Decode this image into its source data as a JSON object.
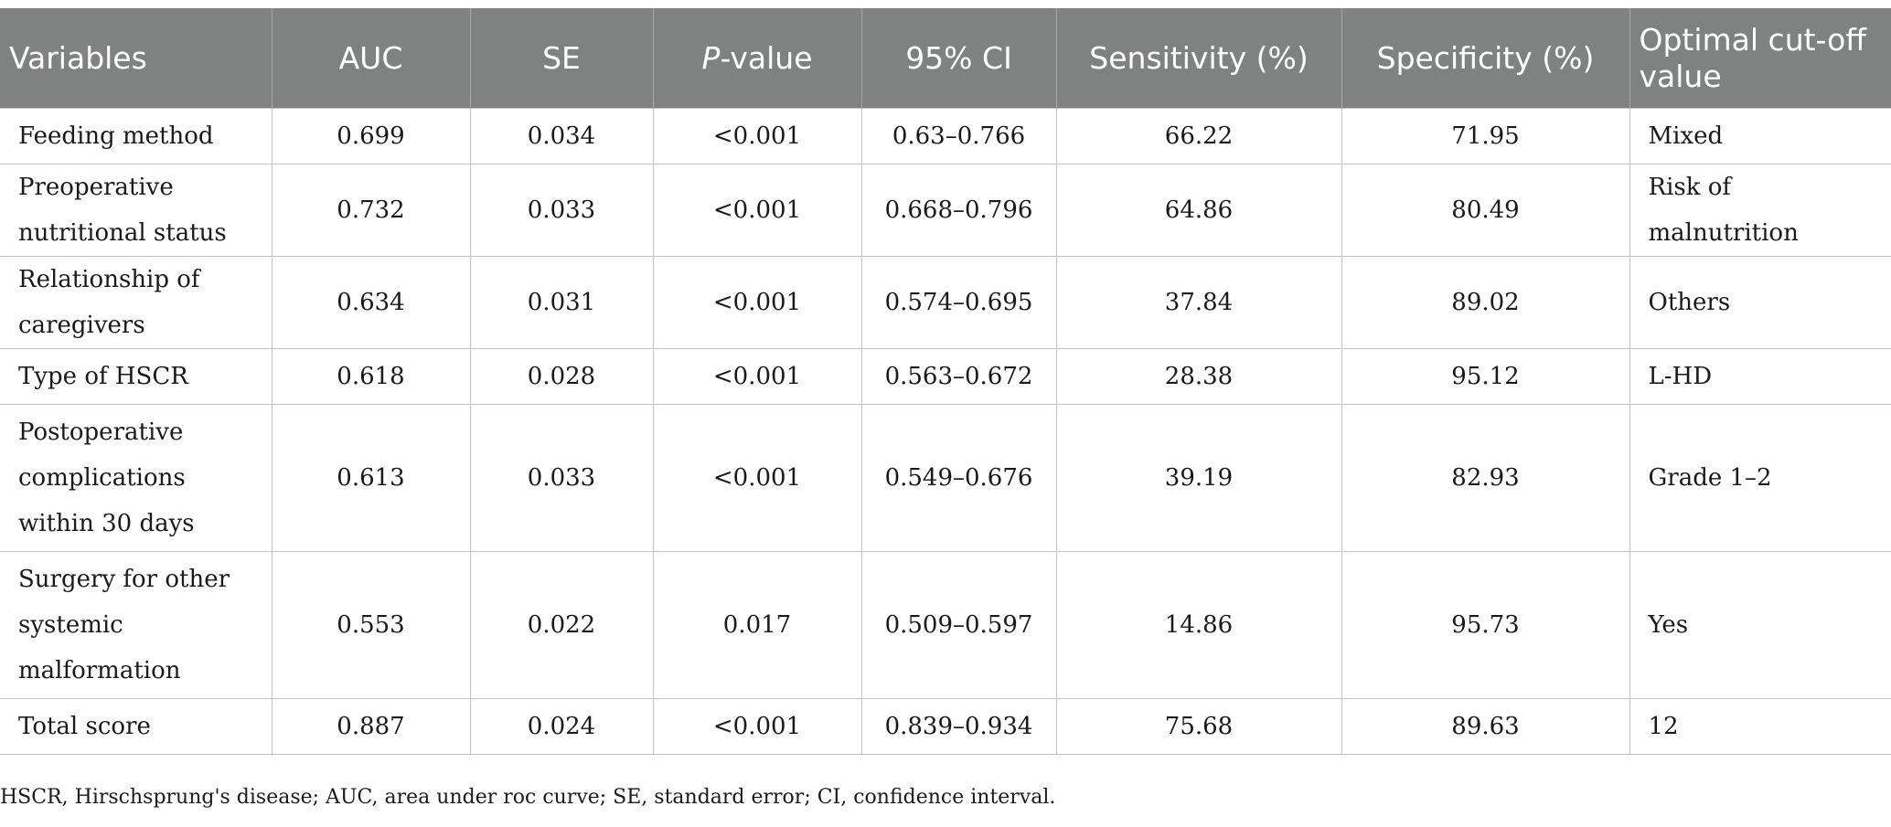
{
  "table": {
    "headers": {
      "variables": "Variables",
      "auc": "AUC",
      "se": "SE",
      "p_italic": "P",
      "p_suffix": "-value",
      "ci": "95% CI",
      "sensitivity": "Sensitivity (%)",
      "specificity": "Specificity (%)",
      "cutoff": "Optimal cut-off value"
    },
    "rows": [
      {
        "variable": "Feeding method",
        "auc": "0.699",
        "se": "0.034",
        "p": "<0.001",
        "ci": "0.63–0.766",
        "sensitivity": "66.22",
        "specificity": "71.95",
        "cutoff": "Mixed"
      },
      {
        "variable": "Preoperative nutritional status",
        "auc": "0.732",
        "se": "0.033",
        "p": "<0.001",
        "ci": "0.668–0.796",
        "sensitivity": "64.86",
        "specificity": "80.49",
        "cutoff": "Risk of malnutrition"
      },
      {
        "variable": "Relationship of caregivers",
        "auc": "0.634",
        "se": "0.031",
        "p": "<0.001",
        "ci": "0.574–0.695",
        "sensitivity": "37.84",
        "specificity": "89.02",
        "cutoff": "Others"
      },
      {
        "variable": "Type of HSCR",
        "auc": "0.618",
        "se": "0.028",
        "p": "<0.001",
        "ci": "0.563–0.672",
        "sensitivity": "28.38",
        "specificity": "95.12",
        "cutoff": "L-HD"
      },
      {
        "variable": "Postoperative complications within 30 days",
        "auc": "0.613",
        "se": "0.033",
        "p": "<0.001",
        "ci": "0.549–0.676",
        "sensitivity": "39.19",
        "specificity": "82.93",
        "cutoff": "Grade 1–2"
      },
      {
        "variable": "Surgery for other systemic malformation",
        "auc": "0.553",
        "se": "0.022",
        "p": "0.017",
        "ci": "0.509–0.597",
        "sensitivity": "14.86",
        "specificity": "95.73",
        "cutoff": "Yes"
      },
      {
        "variable": "Total score",
        "auc": "0.887",
        "se": "0.024",
        "p": "<0.001",
        "ci": "0.839–0.934",
        "sensitivity": "75.68",
        "specificity": "89.63",
        "cutoff": "12"
      }
    ]
  },
  "footnote": "HSCR, Hirschsprung's disease; AUC, area under roc curve; SE, standard error; CI, confidence interval."
}
